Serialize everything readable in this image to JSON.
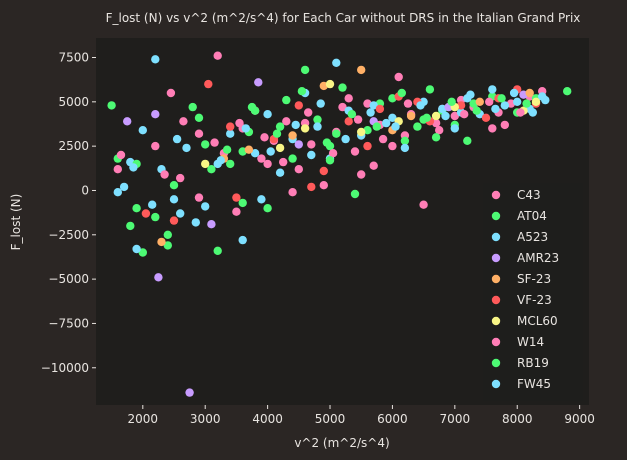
{
  "chart_data": {
    "type": "scatter",
    "title": "F_lost (N) vs v^2 (m^2/s^4) for Each Car without DRS in the Italian Grand Prix",
    "xlabel": "v^2 (m^2/s^4)",
    "ylabel": "F_lost (N)",
    "xlim": [
      1250,
      9150
    ],
    "ylim": [
      -12100,
      8600
    ],
    "xticks": [
      2000,
      3000,
      4000,
      5000,
      6000,
      7000,
      8000,
      9000
    ],
    "xtick_labels": [
      "2000",
      "3000",
      "4000",
      "5000",
      "6000",
      "7000",
      "8000",
      "9000"
    ],
    "yticks": [
      7500,
      5000,
      2500,
      0,
      -2500,
      -5000,
      -7500,
      -10000
    ],
    "ytick_labels": [
      "7500",
      "5000",
      "2500",
      "0",
      "−2500",
      "−5000",
      "−7500",
      "−10000"
    ],
    "grid": false,
    "legend_position": "lower-right",
    "series": [
      {
        "name": "C43",
        "color": "#ff7eb6",
        "points": [
          [
            1600,
            1200
          ],
          [
            2200,
            2500
          ],
          [
            2450,
            5500
          ],
          [
            2900,
            3200
          ],
          [
            3200,
            7600
          ],
          [
            3300,
            2100
          ],
          [
            3600,
            3500
          ],
          [
            3900,
            1800
          ],
          [
            4100,
            2800
          ],
          [
            4300,
            3900
          ],
          [
            4500,
            1200
          ],
          [
            4700,
            2600
          ],
          [
            4900,
            300
          ],
          [
            5100,
            3300
          ],
          [
            5200,
            4700
          ],
          [
            5400,
            2200
          ],
          [
            5600,
            4900
          ],
          [
            5800,
            3700
          ],
          [
            6000,
            2500
          ],
          [
            6100,
            6400
          ],
          [
            6300,
            4300
          ],
          [
            6500,
            -800
          ],
          [
            6700,
            3800
          ],
          [
            7000,
            4200
          ],
          [
            7300,
            4700
          ],
          [
            7600,
            3500
          ],
          [
            7900,
            4900
          ],
          [
            8200,
            5300
          ],
          [
            3500,
            -1200
          ],
          [
            4000,
            1500
          ],
          [
            5500,
            900
          ],
          [
            6800,
            4600
          ],
          [
            2600,
            700
          ],
          [
            3800,
            4500
          ],
          [
            4600,
            3800
          ],
          [
            5300,
            5200
          ],
          [
            6200,
            3100
          ],
          [
            7100,
            5100
          ],
          [
            7700,
            4400
          ],
          [
            8400,
            5600
          ]
        ]
      },
      {
        "name": "AT04",
        "color": "#4dfa74",
        "points": [
          [
            1500,
            4800
          ],
          [
            1600,
            1800
          ],
          [
            1900,
            -1000
          ],
          [
            2000,
            -3500
          ],
          [
            2400,
            -3100
          ],
          [
            2800,
            4700
          ],
          [
            3000,
            2600
          ],
          [
            3200,
            -3400
          ],
          [
            3400,
            1500
          ],
          [
            3600,
            2200
          ],
          [
            3700,
            3300
          ],
          [
            3800,
            4500
          ],
          [
            4000,
            -1000
          ],
          [
            4200,
            3600
          ],
          [
            4400,
            1800
          ],
          [
            4600,
            6800
          ],
          [
            4800,
            4000
          ],
          [
            5000,
            2500
          ],
          [
            5200,
            5800
          ],
          [
            5400,
            -200
          ],
          [
            5600,
            3400
          ],
          [
            5800,
            4900
          ],
          [
            6000,
            5200
          ],
          [
            6200,
            2800
          ],
          [
            6400,
            3600
          ],
          [
            6600,
            5700
          ],
          [
            6800,
            4500
          ],
          [
            7000,
            3700
          ],
          [
            7300,
            4900
          ],
          [
            7600,
            5300
          ],
          [
            8000,
            4400
          ],
          [
            8300,
            5200
          ],
          [
            8800,
            5600
          ],
          [
            1800,
            -2000
          ],
          [
            2500,
            300
          ],
          [
            3100,
            1200
          ],
          [
            4300,
            5100
          ],
          [
            5100,
            3200
          ],
          [
            6500,
            4000
          ],
          [
            7200,
            2800
          ]
        ]
      },
      {
        "name": "A523",
        "color": "#7ee0ff",
        "points": [
          [
            1700,
            200
          ],
          [
            1900,
            -3300
          ],
          [
            2000,
            3400
          ],
          [
            2200,
            7400
          ],
          [
            2300,
            1200
          ],
          [
            2500,
            -500
          ],
          [
            2700,
            2400
          ],
          [
            3000,
            -900
          ],
          [
            3200,
            1500
          ],
          [
            3400,
            3200
          ],
          [
            3600,
            -2800
          ],
          [
            3800,
            2100
          ],
          [
            4000,
            4300
          ],
          [
            4200,
            1000
          ],
          [
            4400,
            2900
          ],
          [
            4600,
            5500
          ],
          [
            4800,
            3600
          ],
          [
            5000,
            1800
          ],
          [
            5100,
            7200
          ],
          [
            5300,
            4500
          ],
          [
            5500,
            3100
          ],
          [
            5700,
            4800
          ],
          [
            6000,
            4100
          ],
          [
            6200,
            2400
          ],
          [
            6500,
            5000
          ],
          [
            6800,
            4600
          ],
          [
            7000,
            3500
          ],
          [
            7200,
            5200
          ],
          [
            7400,
            4300
          ],
          [
            7600,
            5700
          ],
          [
            7800,
            4800
          ],
          [
            8000,
            5000
          ],
          [
            8200,
            4600
          ],
          [
            8400,
            5300
          ],
          [
            1800,
            1600
          ],
          [
            2600,
            -1300
          ],
          [
            3900,
            -500
          ],
          [
            4700,
            2000
          ],
          [
            5900,
            3800
          ],
          [
            7100,
            4400
          ]
        ]
      },
      {
        "name": "AMR23",
        "color": "#c89cff",
        "points": [
          [
            1750,
            3900
          ],
          [
            2250,
            -4900
          ],
          [
            2750,
            -11400
          ],
          [
            3850,
            6100
          ],
          [
            2200,
            4300
          ],
          [
            3100,
            -1900
          ],
          [
            4500,
            2600
          ],
          [
            5700,
            3900
          ],
          [
            6900,
            4700
          ],
          [
            8100,
            5400
          ]
        ]
      },
      {
        "name": "SF-23",
        "color": "#ffb066",
        "points": [
          [
            2300,
            -2900
          ],
          [
            3300,
            1800
          ],
          [
            4400,
            3100
          ],
          [
            5500,
            6800
          ],
          [
            6300,
            4200
          ],
          [
            7400,
            5000
          ],
          [
            8200,
            5500
          ],
          [
            4900,
            5900
          ],
          [
            3700,
            2300
          ],
          [
            6000,
            3400
          ]
        ]
      },
      {
        "name": "VF-23",
        "color": "#ff5a5a",
        "points": [
          [
            2050,
            -1300
          ],
          [
            2500,
            -1700
          ],
          [
            3050,
            6000
          ],
          [
            3500,
            -400
          ],
          [
            4100,
            2900
          ],
          [
            4500,
            4800
          ],
          [
            4900,
            1100
          ],
          [
            5300,
            3900
          ],
          [
            5800,
            4600
          ],
          [
            6100,
            5300
          ],
          [
            6600,
            3900
          ],
          [
            7100,
            4800
          ],
          [
            7700,
            5200
          ],
          [
            8300,
            4900
          ],
          [
            3400,
            3600
          ],
          [
            4700,
            200
          ],
          [
            5600,
            2500
          ],
          [
            6400,
            5000
          ],
          [
            7500,
            4100
          ],
          [
            8000,
            5700
          ]
        ]
      },
      {
        "name": "MCL60",
        "color": "#f8f586",
        "points": [
          [
            3000,
            1500
          ],
          [
            4200,
            2400
          ],
          [
            5000,
            6000
          ],
          [
            6100,
            3900
          ],
          [
            7000,
            4700
          ],
          [
            8100,
            4500
          ],
          [
            8300,
            5000
          ],
          [
            5500,
            3300
          ],
          [
            6700,
            4200
          ],
          [
            4600,
            3500
          ]
        ]
      },
      {
        "name": "W14",
        "color": "#ff7eb6",
        "points": [
          [
            1650,
            2000
          ],
          [
            2350,
            900
          ],
          [
            2650,
            3900
          ],
          [
            3150,
            2700
          ],
          [
            3550,
            3800
          ],
          [
            3950,
            3000
          ],
          [
            4250,
            1600
          ],
          [
            4650,
            4400
          ],
          [
            5050,
            2100
          ],
          [
            5450,
            4000
          ],
          [
            5850,
            2900
          ],
          [
            6250,
            4900
          ],
          [
            6750,
            3400
          ],
          [
            7150,
            4300
          ],
          [
            7550,
            5000
          ],
          [
            8050,
            4400
          ],
          [
            2900,
            -400
          ],
          [
            4400,
            -100
          ],
          [
            5700,
            1400
          ],
          [
            7800,
            3700
          ]
        ]
      },
      {
        "name": "RB19",
        "color": "#4dfa74",
        "points": [
          [
            1900,
            1500
          ],
          [
            2400,
            -2500
          ],
          [
            2900,
            4100
          ],
          [
            3350,
            2300
          ],
          [
            3750,
            4700
          ],
          [
            4150,
            3200
          ],
          [
            4550,
            5600
          ],
          [
            4950,
            2700
          ],
          [
            5350,
            4300
          ],
          [
            5750,
            3600
          ],
          [
            6150,
            5500
          ],
          [
            6550,
            4100
          ],
          [
            6950,
            5000
          ],
          [
            7350,
            4500
          ],
          [
            7750,
            5200
          ],
          [
            8150,
            4900
          ],
          [
            2200,
            -1500
          ],
          [
            3600,
            -700
          ],
          [
            5000,
            1700
          ],
          [
            6700,
            3000
          ]
        ]
      },
      {
        "name": "FW45",
        "color": "#7ee0ff",
        "points": [
          [
            1600,
            -100
          ],
          [
            1850,
            1300
          ],
          [
            2150,
            -800
          ],
          [
            2550,
            2900
          ],
          [
            2850,
            -1800
          ],
          [
            3250,
            1700
          ],
          [
            3650,
            3500
          ],
          [
            4050,
            2200
          ],
          [
            4450,
            3700
          ],
          [
            4850,
            4900
          ],
          [
            5250,
            2900
          ],
          [
            5650,
            4400
          ],
          [
            6050,
            3600
          ],
          [
            6450,
            4800
          ],
          [
            6850,
            4200
          ],
          [
            7250,
            5400
          ],
          [
            7650,
            4600
          ],
          [
            7950,
            5500
          ],
          [
            8250,
            4400
          ],
          [
            8450,
            5100
          ]
        ]
      }
    ]
  }
}
